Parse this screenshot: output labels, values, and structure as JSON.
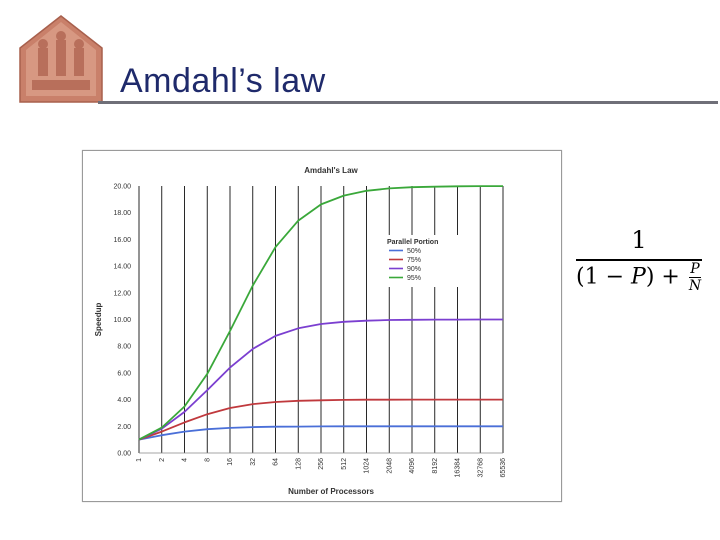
{
  "slide": {
    "title": "Amdahl’s law",
    "formula": {
      "numerator": "1",
      "denominator_open": "(1 − ",
      "var_p": "P",
      "denominator_close": ") + ",
      "frac_top": "P",
      "frac_bottom": "N"
    }
  },
  "colors": {
    "title": "#1f2a6b",
    "rule": "#6f6f78",
    "series_50": "#4a6fd8",
    "series_75": "#c0393d",
    "series_90": "#7b3fd0",
    "series_95": "#3aa83a"
  },
  "chart_data": {
    "type": "line",
    "title": "Amdahl's Law",
    "xlabel": "Number of Processors",
    "ylabel": "Speedup",
    "ylim": [
      0,
      20
    ],
    "y_ticks": [
      "0.00",
      "2.00",
      "4.00",
      "6.00",
      "8.00",
      "10.00",
      "12.00",
      "14.00",
      "16.00",
      "18.00",
      "20.00"
    ],
    "categories": [
      "1",
      "2",
      "4",
      "8",
      "16",
      "32",
      "64",
      "128",
      "256",
      "512",
      "1024",
      "2048",
      "4096",
      "8192",
      "16384",
      "32768",
      "65536"
    ],
    "grid": "vertical",
    "legend": {
      "title": "Parallel Portion",
      "placement": "top-right"
    },
    "series": [
      {
        "name": "50%",
        "color": "#4a6fd8",
        "values": [
          1,
          1.33,
          1.6,
          1.78,
          1.88,
          1.94,
          1.97,
          1.98,
          1.99,
          2,
          2,
          2,
          2,
          2,
          2,
          2,
          2
        ]
      },
      {
        "name": "75%",
        "color": "#c0393d",
        "values": [
          1,
          1.6,
          2.29,
          2.91,
          3.37,
          3.66,
          3.82,
          3.91,
          3.95,
          3.98,
          3.99,
          3.99,
          4,
          4,
          4,
          4,
          4
        ]
      },
      {
        "name": "90%",
        "color": "#7b3fd0",
        "values": [
          1,
          1.82,
          3.08,
          4.71,
          6.4,
          7.8,
          8.77,
          9.34,
          9.66,
          9.83,
          9.91,
          9.96,
          9.98,
          9.99,
          9.99,
          10,
          10
        ]
      },
      {
        "name": "95%",
        "color": "#3aa83a",
        "values": [
          1,
          1.9,
          3.48,
          5.93,
          9.14,
          12.55,
          15.42,
          17.41,
          18.62,
          19.28,
          19.64,
          19.82,
          19.91,
          19.95,
          19.98,
          19.99,
          19.99
        ]
      }
    ]
  }
}
